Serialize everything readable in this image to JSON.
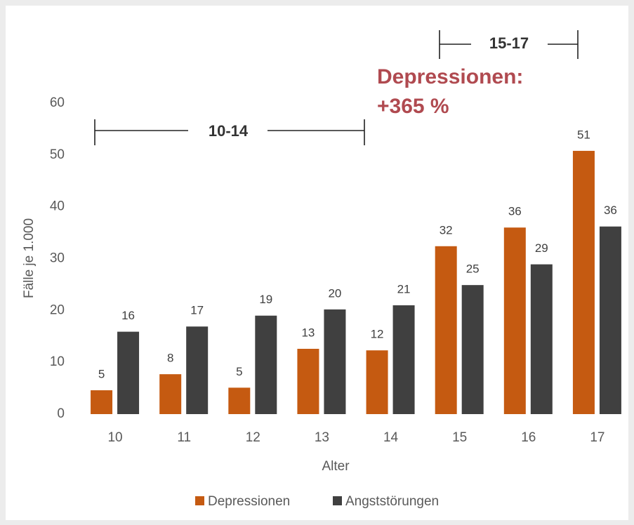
{
  "chart_data": {
    "type": "bar",
    "categories": [
      "10",
      "11",
      "12",
      "13",
      "14",
      "15",
      "16",
      "17"
    ],
    "series": [
      {
        "name": "Depressionen",
        "color": "#c55a11",
        "values": [
          4.6,
          7.7,
          5.1,
          12.6,
          12.3,
          32.4,
          36.0,
          50.8
        ],
        "value_labels": [
          "5",
          "8",
          "5",
          "13",
          "12",
          "32",
          "36",
          "51"
        ]
      },
      {
        "name": "Angststörungen",
        "color": "#404040",
        "values": [
          15.9,
          16.9,
          19.0,
          20.2,
          21.0,
          24.9,
          28.9,
          36.2
        ],
        "value_labels": [
          "16",
          "17",
          "19",
          "20",
          "21",
          "25",
          "29",
          "36"
        ]
      }
    ],
    "ylim": [
      0,
      60
    ],
    "yticks": [
      0,
      10,
      20,
      30,
      40,
      50,
      60
    ],
    "y_label": "Fälle je 1.000",
    "x_label": "Alter",
    "grid": false,
    "legend": "bottom",
    "annotations": [
      "10-14",
      "15-17",
      "Depressionen:",
      "+365 %"
    ]
  }
}
